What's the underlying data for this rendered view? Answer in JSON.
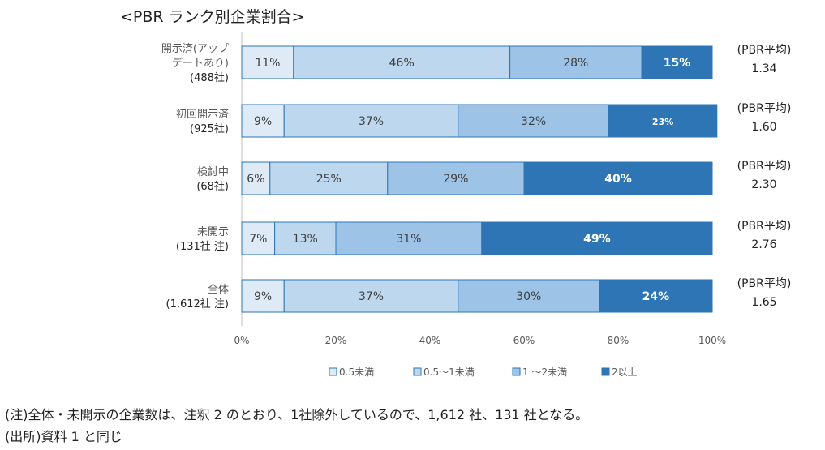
{
  "chart_data": {
    "type": "bar",
    "orientation": "horizontal",
    "stacked": true,
    "title": "<PBR ランク別企業割合>",
    "categories": [
      {
        "label_lines": [
          "開示済(アップ",
          "デートあり)",
          "(488社)"
        ]
      },
      {
        "label_lines": [
          "初回開示済",
          "(925社)"
        ]
      },
      {
        "label_lines": [
          "検討中",
          "(68社)"
        ]
      },
      {
        "label_lines": [
          "未開示",
          "(131社 注)"
        ]
      },
      {
        "label_lines": [
          "全体",
          "(1,612社 注)"
        ]
      }
    ],
    "series": [
      {
        "name": "0.5未満",
        "color": "#DEEBF7",
        "values": [
          11,
          9,
          6,
          7,
          9
        ],
        "labels": [
          "11%",
          "9%",
          "6%",
          "7%",
          "9%"
        ]
      },
      {
        "name": "0.5～1未満",
        "color": "#BDD7EE",
        "values": [
          46,
          37,
          25,
          13,
          37
        ],
        "labels": [
          "46%",
          "37%",
          "25%",
          "13%",
          "37%"
        ]
      },
      {
        "name": "1 ～2未満",
        "color": "#9DC3E6",
        "values": [
          28,
          32,
          29,
          31,
          30
        ],
        "labels": [
          "28%",
          "32%",
          "29%",
          "31%",
          "30%"
        ]
      },
      {
        "name": "2以上",
        "color": "#2E75B6",
        "values": [
          15,
          23,
          40,
          49,
          24
        ],
        "labels": [
          "15%",
          "23%",
          "40%",
          "49%",
          "24%"
        ]
      }
    ],
    "xlim": [
      0,
      100
    ],
    "x_ticks": [
      "0%",
      "20%",
      "40%",
      "60%",
      "80%",
      "100%"
    ],
    "legend_position": "bottom",
    "annotations": {
      "avg_label": "(PBR平均)",
      "avg_values": [
        "1.34",
        "1.60",
        "2.30",
        "2.76",
        "1.65"
      ]
    }
  },
  "notes": {
    "note1": "(注)全体・未開示の企業数は、注釈 2 のとおり、1社除外しているので、1,612 社、131 社となる。",
    "note2": "(出所)資料 1 と同じ"
  }
}
